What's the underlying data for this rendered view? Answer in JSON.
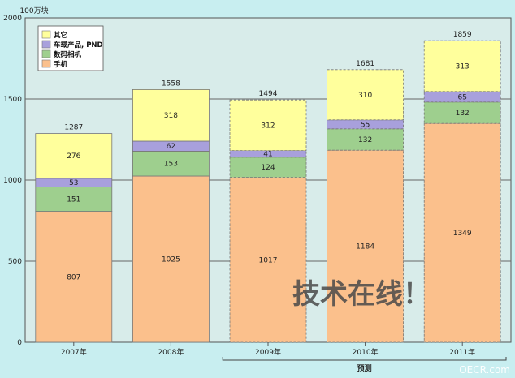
{
  "chart_data": {
    "type": "bar",
    "stacked": true,
    "ylabel": "100万块",
    "ylim": [
      0,
      2000
    ],
    "yticks": [
      0,
      500,
      1000,
      1500,
      2000
    ],
    "categories": [
      "2007年",
      "2008年",
      "2009年",
      "2010年",
      "2011年"
    ],
    "forecast_from_index": 2,
    "forecast_label": "预测",
    "series": [
      {
        "name": "手机",
        "color": "#fbc08c",
        "values": [
          807,
          1025,
          1017,
          1184,
          1349
        ]
      },
      {
        "name": "数码相机",
        "color": "#9ecf8e",
        "values": [
          151,
          153,
          124,
          132,
          132
        ]
      },
      {
        "name": "车载产品, PND",
        "color": "#a8a0dc",
        "values": [
          53,
          62,
          41,
          55,
          65
        ]
      },
      {
        "name": "其它",
        "color": "#ffff9c",
        "values": [
          276,
          318,
          312,
          310,
          313
        ]
      }
    ],
    "totals": [
      1287,
      1558,
      1494,
      1681,
      1859
    ],
    "legend_position": "top-left",
    "grid": true
  },
  "watermark": {
    "text": "技术在线！",
    "site": "OECR.com"
  }
}
